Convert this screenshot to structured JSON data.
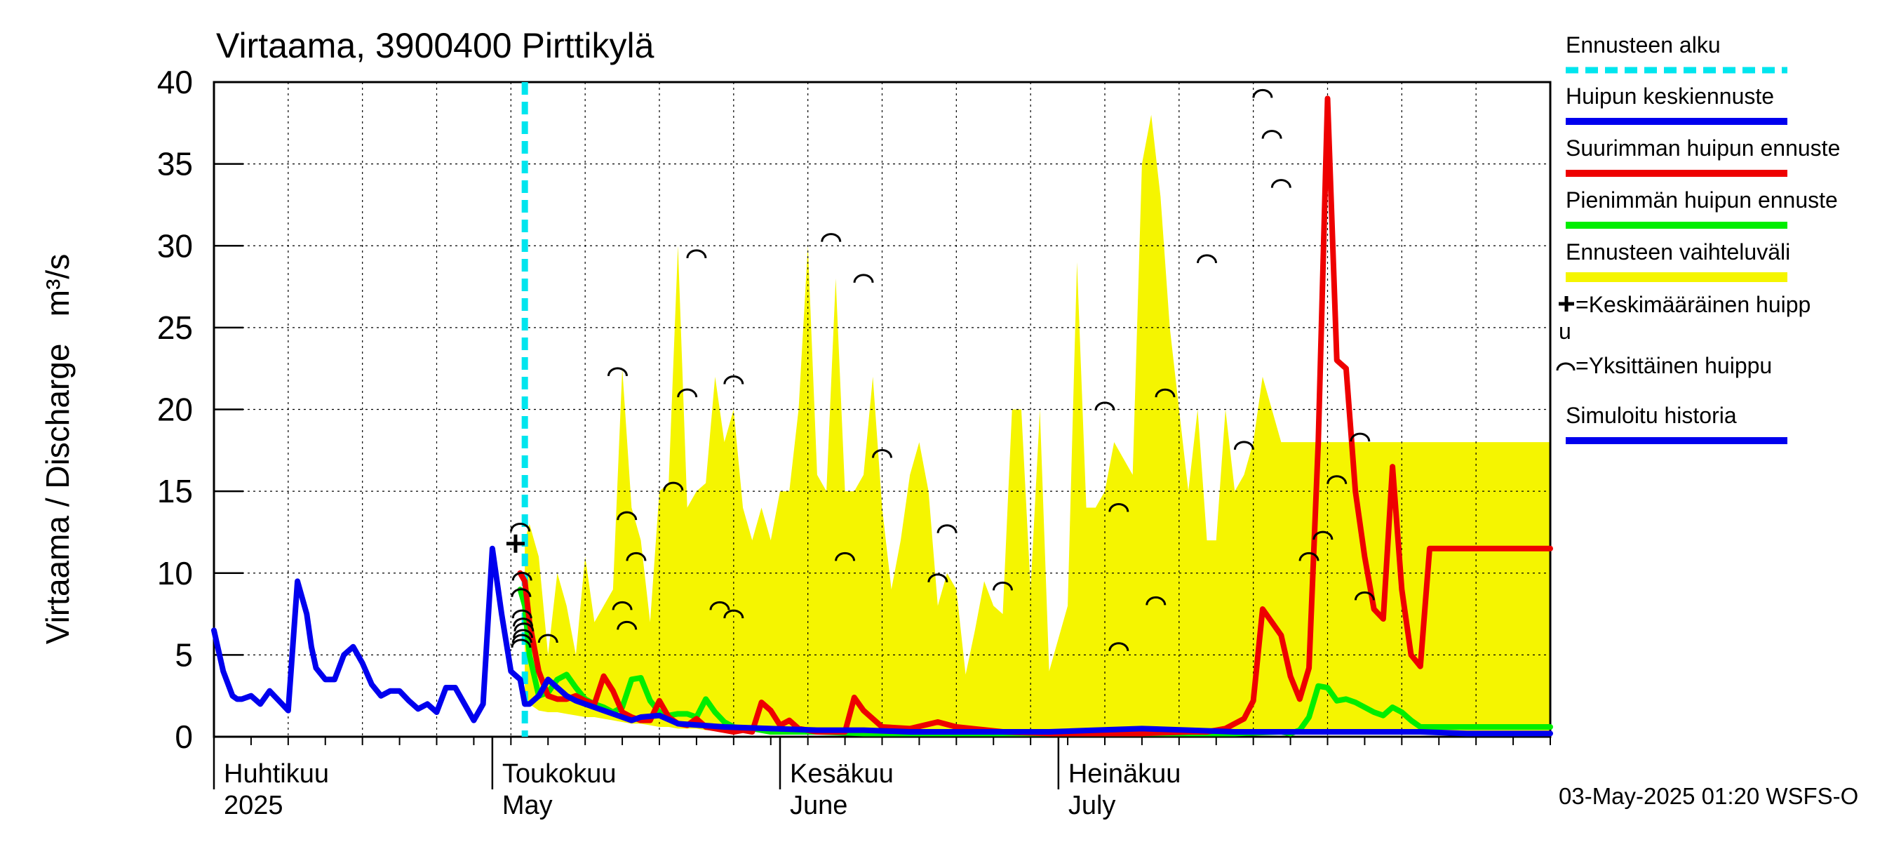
{
  "chart_data": {
    "type": "line",
    "title": "Virtaama, 3900400 Pirttikylä",
    "ylabel": "Virtaama / Discharge   m³/s",
    "ylim": [
      0,
      40
    ],
    "yticks": [
      0,
      5,
      10,
      15,
      20,
      25,
      30,
      35,
      40
    ],
    "grid": true,
    "x_range_days": [
      0,
      144
    ],
    "forecast_start_day": 33.5,
    "month_labels": [
      {
        "day": 0,
        "fi": "Huhtikuu",
        "en": "2025"
      },
      {
        "day": 30,
        "fi": "Toukokuu",
        "en": "May"
      },
      {
        "day": 61,
        "fi": "Kesäkuu",
        "en": "June"
      },
      {
        "day": 91,
        "fi": "Heinäkuu",
        "en": "July"
      }
    ],
    "footer": "03-May-2025 01:20 WSFS-O",
    "legend": [
      {
        "label": "Ennusteen alku",
        "color": "#00e5ee",
        "style": "dashed"
      },
      {
        "label": "Huipun keskiennuste",
        "color": "#0000ee",
        "style": "line"
      },
      {
        "label": "Suurimman huipun ennuste",
        "color": "#ee0000",
        "style": "line"
      },
      {
        "label": "Pienimmän huipun ennuste",
        "color": "#00ee00",
        "style": "line"
      },
      {
        "label": "Ennusteen vaihteluväli",
        "color": "#f5f500",
        "style": "band"
      },
      {
        "label": "=Keskimääräinen huipp",
        "label2": "u",
        "color": "#000000",
        "style": "plus"
      },
      {
        "label": "=Yksittäinen huippu",
        "color": "#000000",
        "style": "arc"
      },
      {
        "label": "Simuloitu historia",
        "color": "#0000ee",
        "style": "line"
      }
    ],
    "series": [
      {
        "name": "Simuloitu historia",
        "color": "#0000ee",
        "x": [
          0,
          1,
          2,
          2.5,
          3,
          4,
          5,
          6,
          7,
          8,
          9,
          10,
          10.5,
          11,
          12,
          13,
          14,
          15,
          16,
          17,
          18,
          19,
          20,
          21,
          22,
          23,
          24,
          25,
          26,
          27,
          28,
          29,
          30,
          31,
          32,
          33,
          33.5
        ],
        "y": [
          6.5,
          4,
          2.5,
          2.3,
          2.3,
          2.5,
          2,
          2.8,
          2.2,
          1.6,
          9.5,
          7.5,
          5.5,
          4.2,
          3.5,
          3.5,
          5,
          5.5,
          4.5,
          3.2,
          2.5,
          2.8,
          2.8,
          2.2,
          1.7,
          2,
          1.5,
          3,
          3,
          2,
          1,
          2,
          11.5,
          7.5,
          4,
          3.5,
          2
        ]
      },
      {
        "name": "Huipun keskiennuste",
        "color": "#0000ee",
        "x": [
          33.5,
          34,
          35,
          36,
          37,
          38,
          39,
          40,
          42,
          44,
          45,
          46,
          48,
          50,
          55,
          60,
          65,
          70,
          75,
          80,
          85,
          90,
          95,
          100,
          105,
          110,
          115,
          120,
          125,
          130,
          135,
          140,
          144
        ],
        "y": [
          2,
          2,
          2.5,
          3.5,
          3,
          2.5,
          2.2,
          2,
          1.6,
          1.2,
          1,
          1.2,
          1.3,
          0.8,
          0.6,
          0.5,
          0.4,
          0.4,
          0.3,
          0.3,
          0.3,
          0.3,
          0.4,
          0.5,
          0.4,
          0.3,
          0.3,
          0.3,
          0.3,
          0.3,
          0.2,
          0.2,
          0.2
        ]
      },
      {
        "name": "Suurimman huipun ennuste",
        "color": "#ee0000",
        "x": [
          33,
          33.5,
          34,
          35,
          36,
          37,
          38,
          39,
          40,
          41,
          42,
          43,
          44,
          45,
          46,
          47,
          48,
          49,
          50,
          51,
          52,
          53,
          54,
          55,
          56,
          57,
          58,
          59,
          60,
          61,
          62,
          63,
          64,
          65,
          66,
          67,
          68,
          69,
          70,
          72,
          75,
          78,
          80,
          85,
          90,
          95,
          100,
          105,
          107,
          108,
          109,
          110,
          111,
          112,
          113,
          114,
          115,
          116,
          117,
          118,
          119,
          120,
          121,
          122,
          123,
          124,
          125,
          126,
          127,
          128,
          129,
          130,
          131,
          132,
          133,
          134,
          135,
          136,
          137,
          138,
          139,
          140,
          141,
          142,
          143,
          144
        ],
        "y": [
          10,
          9.5,
          7,
          4,
          2.5,
          2.3,
          2.3,
          2.5,
          2.2,
          2,
          3.7,
          2.8,
          1.5,
          1.2,
          1,
          1,
          2.2,
          1.2,
          0.8,
          0.7,
          1.1,
          0.6,
          0.5,
          0.4,
          0.3,
          0.4,
          0.3,
          2.1,
          1.6,
          0.7,
          1,
          0.5,
          0.4,
          0.3,
          0.3,
          0.3,
          0.3,
          2.4,
          1.6,
          0.6,
          0.5,
          0.9,
          0.6,
          0.3,
          0.2,
          0.2,
          0.2,
          0.3,
          0.3,
          0.4,
          0.5,
          0.8,
          1.1,
          2.2,
          7.8,
          7,
          6.2,
          3.7,
          2.3,
          4.2,
          18,
          39,
          23,
          22.5,
          15,
          11,
          7.8,
          7.2,
          16.5,
          9,
          5,
          4.3,
          11.5,
          11.5,
          11.5,
          11.5,
          11.5,
          11.5,
          11.5,
          11.5,
          11.5,
          11.5,
          11.5,
          11.5,
          11.5,
          11.5
        ]
      },
      {
        "name": "Pienimmän huipun ennuste",
        "color": "#00ee00",
        "x": [
          33,
          33.5,
          34,
          35,
          36,
          37,
          38,
          39,
          40,
          41,
          42,
          43,
          44,
          45,
          46,
          47,
          48,
          49,
          50,
          51,
          52,
          53,
          54,
          55,
          56,
          57,
          58,
          59,
          60,
          65,
          70,
          75,
          80,
          85,
          90,
          95,
          100,
          105,
          110,
          115,
          116,
          117,
          118,
          119,
          120,
          121,
          122,
          123,
          124,
          125,
          126,
          127,
          128,
          129,
          130,
          131,
          132,
          144
        ],
        "y": [
          9,
          8,
          5,
          2.5,
          2.7,
          3.5,
          3.8,
          3,
          2.3,
          2,
          1.8,
          1.5,
          1.8,
          3.5,
          3.6,
          2.2,
          1.5,
          1.3,
          1.4,
          1.4,
          1.2,
          2.3,
          1.5,
          0.9,
          0.6,
          0.5,
          0.5,
          0.4,
          0.3,
          0.3,
          0.2,
          0.2,
          0.2,
          0.2,
          0.2,
          0.2,
          0.2,
          0.2,
          0.2,
          0.3,
          0.2,
          0.4,
          1.2,
          3.1,
          3,
          2.2,
          2.3,
          2.1,
          1.8,
          1.5,
          1.3,
          1.8,
          1.5,
          1,
          0.6,
          0.6,
          0.6,
          0.6
        ]
      }
    ],
    "band": {
      "name": "Ennusteen vaihteluväli",
      "color": "#f5f500",
      "x": [
        33.5,
        34,
        35,
        36,
        37,
        38,
        39,
        40,
        41,
        42,
        43,
        44,
        45,
        46,
        47,
        48,
        49,
        50,
        51,
        52,
        53,
        54,
        55,
        56,
        57,
        58,
        59,
        60,
        61,
        62,
        63,
        64,
        65,
        66,
        67,
        68,
        69,
        70,
        71,
        72,
        73,
        74,
        75,
        76,
        77,
        78,
        79,
        80,
        81,
        82,
        83,
        84,
        85,
        86,
        87,
        88,
        89,
        90,
        91,
        92,
        93,
        94,
        95,
        96,
        97,
        98,
        99,
        100,
        101,
        102,
        103,
        104,
        105,
        106,
        107,
        108,
        109,
        110,
        111,
        112,
        113,
        114,
        115,
        116,
        117,
        118,
        119,
        120,
        121,
        122,
        123,
        124,
        125,
        126,
        127,
        128,
        129,
        130,
        131,
        132,
        133,
        134,
        135,
        136,
        137,
        138,
        139,
        140,
        141,
        142,
        143,
        144
      ],
      "upper": [
        12,
        13,
        11,
        5,
        10,
        8,
        5,
        11,
        7,
        8,
        9,
        22.5,
        14,
        12,
        7,
        15,
        15.5,
        30,
        14,
        15,
        15.5,
        22,
        18,
        20,
        14,
        12,
        14,
        12,
        15,
        15,
        20,
        30,
        16,
        15,
        28,
        15,
        15,
        16,
        22,
        14,
        9,
        12,
        16,
        18,
        15,
        8,
        10,
        9,
        3.8,
        6.5,
        9.5,
        8,
        7.5,
        20,
        20,
        9,
        20,
        4,
        6,
        8,
        29,
        14,
        14,
        15,
        18,
        17,
        16,
        35,
        38,
        33,
        25,
        20,
        15,
        20,
        12,
        12,
        20,
        15,
        16,
        18,
        22,
        20,
        18,
        18,
        18,
        18,
        18,
        18,
        18,
        18,
        18,
        18,
        18,
        18,
        18,
        18,
        18,
        18,
        18,
        18,
        18,
        18,
        18,
        18,
        18,
        18,
        18,
        18,
        18,
        18,
        18,
        18
      ],
      "lower": [
        2.5,
        2,
        1.6,
        1.5,
        1.5,
        1.4,
        1.3,
        1.2,
        1.2,
        1.1,
        1,
        0.9,
        0.8,
        0.8,
        0.7,
        0.6,
        0.6,
        0.5,
        0.5,
        0.5,
        0.4,
        0.4,
        0.4,
        0.3,
        0.3,
        0.3,
        0.3,
        0.3,
        0.3,
        0.3,
        0.2,
        0.2,
        0.2,
        0.2,
        0.2,
        0.2,
        0.2,
        0.2,
        0.2,
        0.2,
        0.2,
        0.2,
        0.2,
        0.2,
        0.2,
        0.2,
        0.2,
        0.2,
        0.2,
        0.2,
        0.2,
        0.2,
        0.2,
        0.2,
        0.2,
        0.2,
        0.2,
        0.2,
        0.2,
        0.2,
        0.2,
        0.2,
        0.2,
        0.2,
        0.2,
        0.2,
        0.2,
        0.2,
        0.2,
        0.2,
        0.2,
        0.2,
        0.2,
        0.2,
        0.2,
        0.2,
        0.2,
        0.2,
        0.2,
        0.2,
        0.2,
        0.2,
        0.2,
        0.2,
        0.2,
        0.2,
        0.2,
        0.2,
        0.2,
        0.2,
        0.2,
        0.2,
        0.2,
        0.2,
        0.2,
        0.2,
        0.2,
        0.2,
        0.2,
        0.2,
        0.2,
        0.2,
        0.2,
        0.2,
        0.2,
        0.2,
        0.2,
        0.2,
        0.2,
        0.2,
        0.2,
        0.2
      ]
    },
    "mean_peak": {
      "day": 32.5,
      "value": 11.8
    },
    "individual_peaks": [
      [
        33,
        12.8
      ],
      [
        33.2,
        9.8
      ],
      [
        33.1,
        8.8
      ],
      [
        33.2,
        7.5
      ],
      [
        33.3,
        7
      ],
      [
        33.4,
        6.7
      ],
      [
        33.3,
        6.3
      ],
      [
        33.2,
        6
      ],
      [
        33.1,
        5.7
      ],
      [
        36,
        6
      ],
      [
        43.5,
        22.3
      ],
      [
        44.5,
        13.5
      ],
      [
        45.5,
        11
      ],
      [
        44,
        8
      ],
      [
        44.5,
        6.8
      ],
      [
        49.5,
        15.3
      ],
      [
        51,
        21
      ],
      [
        52,
        29.5
      ],
      [
        54.5,
        8
      ],
      [
        56,
        21.8
      ],
      [
        56,
        7.5
      ],
      [
        66.5,
        30.5
      ],
      [
        68,
        11
      ],
      [
        70,
        28
      ],
      [
        72,
        17.3
      ],
      [
        78,
        9.7
      ],
      [
        79,
        12.7
      ],
      [
        85,
        9.2
      ],
      [
        96,
        20.2
      ],
      [
        97.5,
        14
      ],
      [
        97.5,
        5.5
      ],
      [
        101.5,
        8.3
      ],
      [
        102.5,
        21
      ],
      [
        107,
        29.2
      ],
      [
        111,
        17.8
      ],
      [
        113,
        39.3
      ],
      [
        114,
        36.8
      ],
      [
        115,
        33.8
      ],
      [
        118,
        11
      ],
      [
        119.5,
        12.3
      ],
      [
        121,
        15.7
      ],
      [
        123.5,
        18.3
      ],
      [
        124,
        8.6
      ]
    ]
  }
}
